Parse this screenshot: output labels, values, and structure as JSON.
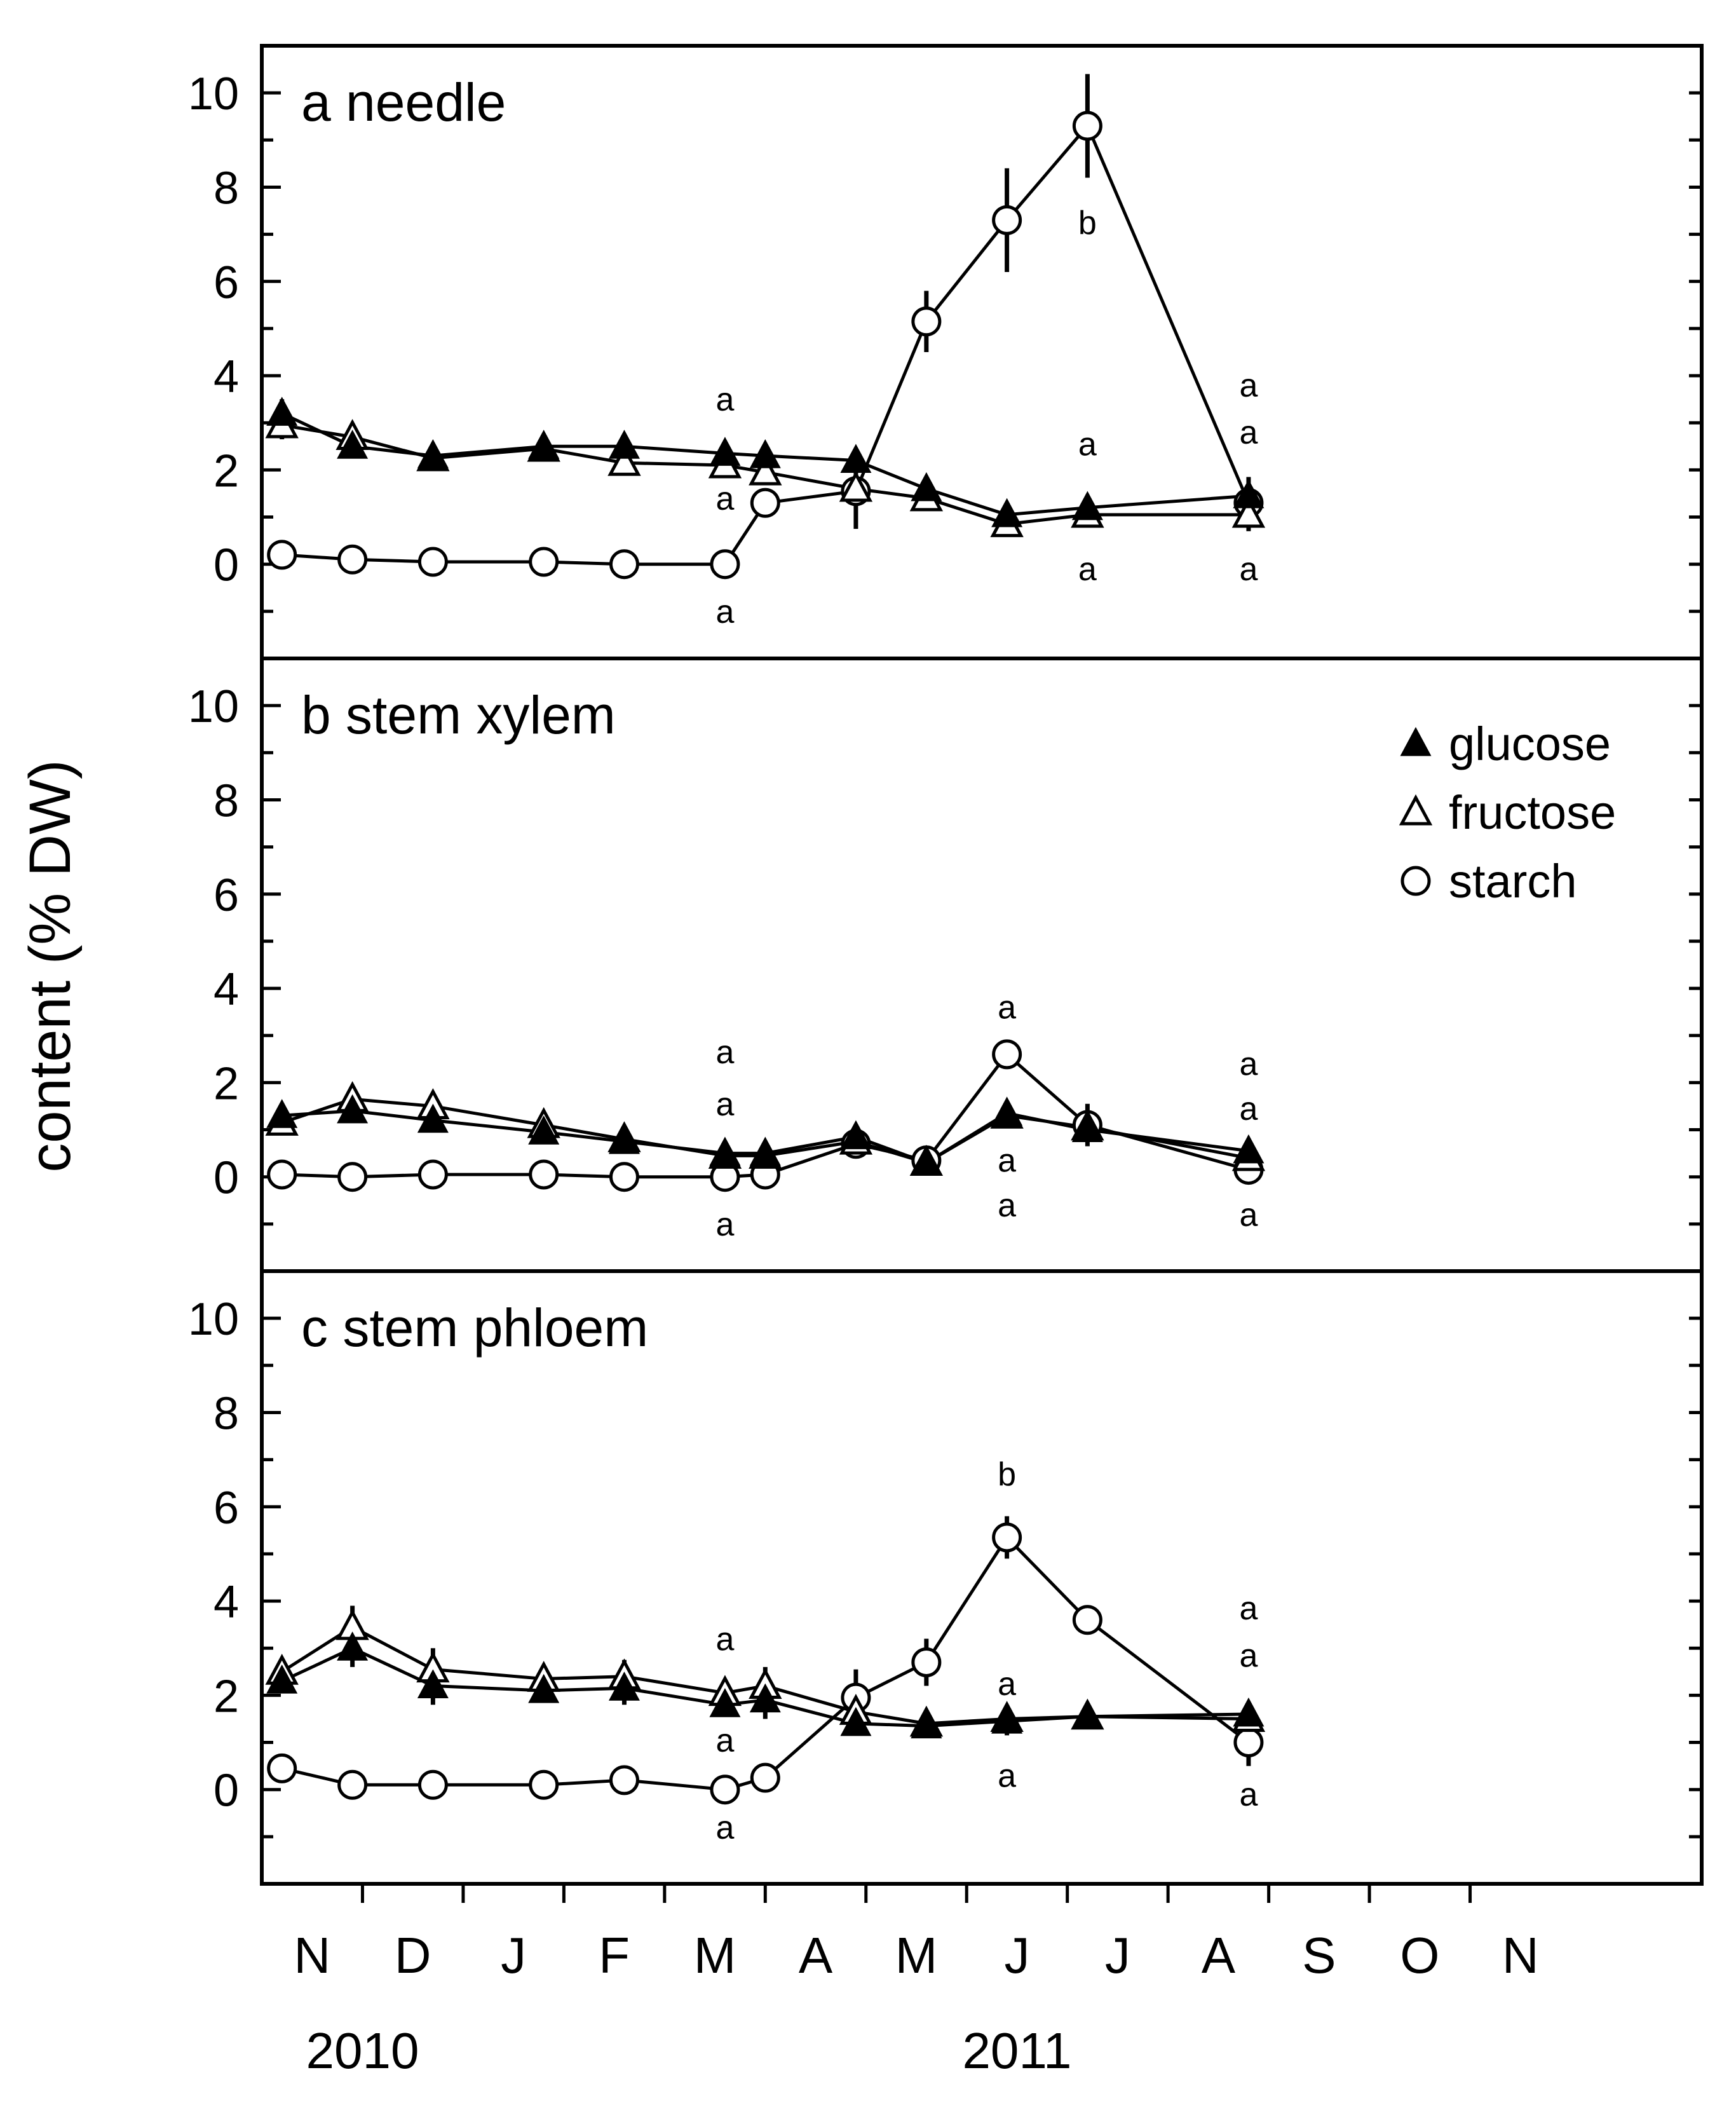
{
  "chart_data": {
    "type": "line",
    "ylabel": "content (% DW)",
    "ylim": [
      -2,
      11
    ],
    "yticks": [
      0,
      2,
      4,
      6,
      8,
      10
    ],
    "xlim": [
      9.5,
      23.8
    ],
    "month_ticks": [
      {
        "label": "N",
        "x": 10
      },
      {
        "label": "D",
        "x": 11
      },
      {
        "label": "J",
        "x": 12
      },
      {
        "label": "F",
        "x": 13
      },
      {
        "label": "M",
        "x": 14
      },
      {
        "label": "A",
        "x": 15
      },
      {
        "label": "M",
        "x": 16
      },
      {
        "label": "J",
        "x": 17
      },
      {
        "label": "J",
        "x": 18
      },
      {
        "label": "A",
        "x": 19
      },
      {
        "label": "S",
        "x": 20
      },
      {
        "label": "O",
        "x": 21
      },
      {
        "label": "N",
        "x": 22
      }
    ],
    "year_labels": [
      {
        "label": "2010",
        "x": 10.5
      },
      {
        "label": "2011",
        "x": 17
      }
    ],
    "legend": {
      "placement": "top-right of panel b",
      "entries": [
        {
          "name": "glucose",
          "marker": "filled-triangle"
        },
        {
          "name": "fructose",
          "marker": "open-triangle"
        },
        {
          "name": "starch",
          "marker": "open-circle"
        }
      ]
    },
    "panels": [
      {
        "title": "a needle",
        "series": [
          {
            "name": "glucose",
            "marker": "filled-triangle",
            "x": [
              9.7,
              10.4,
              11.2,
              12.3,
              13.1,
              14.1,
              14.5,
              15.4,
              16.1,
              16.9,
              17.7,
              19.3
            ],
            "y": [
              3.2,
              2.5,
              2.3,
              2.5,
              2.5,
              2.35,
              2.3,
              2.2,
              1.6,
              1.05,
              1.2,
              1.45
            ],
            "err": [
              0.3,
              0.2,
              0.15,
              0.2,
              0.2,
              0.15,
              0.15,
              0.15,
              0.15,
              0.15,
              0.15,
              0.4
            ]
          },
          {
            "name": "fructose",
            "marker": "open-triangle",
            "x": [
              9.7,
              10.4,
              11.2,
              12.3,
              13.1,
              14.1,
              14.5,
              15.4,
              16.1,
              16.9,
              17.7,
              19.3
            ],
            "y": [
              2.95,
              2.7,
              2.25,
              2.45,
              2.15,
              2.1,
              1.95,
              1.6,
              1.4,
              0.85,
              1.05,
              1.05
            ],
            "err": [
              0.3,
              0.2,
              0.15,
              0.2,
              0.2,
              0.15,
              0.15,
              0.15,
              0.15,
              0.15,
              0.15,
              0.35
            ]
          },
          {
            "name": "starch",
            "marker": "open-circle",
            "x": [
              9.7,
              10.4,
              11.2,
              12.3,
              13.1,
              14.1,
              14.5,
              15.4,
              16.1,
              16.9,
              17.7,
              19.3
            ],
            "y": [
              0.2,
              0.1,
              0.05,
              0.05,
              0.0,
              0.0,
              1.3,
              1.55,
              5.15,
              7.3,
              9.3,
              1.3
            ],
            "err": [
              0.1,
              0.05,
              0.05,
              0.05,
              0.05,
              0.05,
              0.15,
              0.8,
              0.65,
              1.1,
              1.1,
              0.4
            ]
          }
        ],
        "annotations": [
          {
            "text": "a",
            "x": 14.1,
            "y": 3.5
          },
          {
            "text": "a",
            "x": 14.1,
            "y": 1.4
          },
          {
            "text": "a",
            "x": 14.1,
            "y": -1.0
          },
          {
            "text": "b",
            "x": 17.7,
            "y": 7.25
          },
          {
            "text": "a",
            "x": 17.7,
            "y": 2.55
          },
          {
            "text": "a",
            "x": 17.7,
            "y": -0.1
          },
          {
            "text": "a",
            "x": 19.3,
            "y": 3.8
          },
          {
            "text": "a",
            "x": 19.3,
            "y": 2.8
          },
          {
            "text": "a",
            "x": 19.3,
            "y": -0.1
          }
        ]
      },
      {
        "title": "b stem xylem",
        "series": [
          {
            "name": "glucose",
            "marker": "filled-triangle",
            "x": [
              9.7,
              10.4,
              11.2,
              12.3,
              13.1,
              14.1,
              14.5,
              15.4,
              16.1,
              16.9,
              17.7,
              19.3
            ],
            "y": [
              1.3,
              1.4,
              1.2,
              0.95,
              0.75,
              0.5,
              0.5,
              0.85,
              0.3,
              1.35,
              1.0,
              0.55
            ],
            "err": [
              0.1,
              0.1,
              0.1,
              0.1,
              0.1,
              0.1,
              0.1,
              0.1,
              0.1,
              0.15,
              0.15,
              0.1
            ]
          },
          {
            "name": "fructose",
            "marker": "open-triangle",
            "x": [
              9.7,
              10.4,
              11.2,
              12.3,
              13.1,
              14.1,
              14.5,
              15.4,
              16.1,
              16.9,
              17.7,
              19.3
            ],
            "y": [
              1.15,
              1.65,
              1.5,
              1.1,
              0.8,
              0.45,
              0.45,
              0.75,
              0.3,
              1.3,
              1.05,
              0.4
            ],
            "err": [
              0.1,
              0.1,
              0.1,
              0.1,
              0.1,
              0.1,
              0.1,
              0.1,
              0.1,
              0.15,
              0.15,
              0.1
            ]
          },
          {
            "name": "starch",
            "marker": "open-circle",
            "x": [
              9.7,
              10.4,
              11.2,
              12.3,
              13.1,
              14.1,
              14.5,
              15.4,
              16.1,
              16.9,
              17.7,
              19.3
            ],
            "y": [
              0.05,
              0.0,
              0.05,
              0.05,
              0.0,
              0.0,
              0.05,
              0.7,
              0.35,
              2.6,
              1.1,
              0.15
            ],
            "err": [
              0.05,
              0.05,
              0.05,
              0.05,
              0.05,
              0.05,
              0.05,
              0.1,
              0.1,
              0.15,
              0.45,
              0.1
            ]
          }
        ],
        "annotations": [
          {
            "text": "a",
            "x": 14.1,
            "y": 2.65
          },
          {
            "text": "a",
            "x": 14.1,
            "y": 1.55
          },
          {
            "text": "a",
            "x": 14.1,
            "y": -1.0
          },
          {
            "text": "a",
            "x": 16.9,
            "y": 3.6
          },
          {
            "text": "a",
            "x": 16.9,
            "y": 0.35
          },
          {
            "text": "a",
            "x": 16.9,
            "y": -0.6
          },
          {
            "text": "a",
            "x": 19.3,
            "y": 2.4
          },
          {
            "text": "a",
            "x": 19.3,
            "y": 1.45
          },
          {
            "text": "a",
            "x": 19.3,
            "y": -0.8
          }
        ]
      },
      {
        "title": "c stem phloem",
        "series": [
          {
            "name": "glucose",
            "marker": "filled-triangle",
            "x": [
              9.7,
              10.4,
              11.2,
              12.3,
              13.1,
              14.1,
              14.5,
              15.4,
              16.1,
              16.9,
              17.7,
              19.3
            ],
            "y": [
              2.3,
              3.0,
              2.2,
              2.1,
              2.15,
              1.8,
              1.9,
              1.4,
              1.35,
              1.45,
              1.55,
              1.6
            ],
            "err": [
              0.15,
              0.4,
              0.4,
              0.2,
              0.35,
              0.2,
              0.4,
              0.2,
              0.15,
              0.3,
              0.15,
              0.2
            ]
          },
          {
            "name": "fructose",
            "marker": "open-triangle",
            "x": [
              9.7,
              10.4,
              11.2,
              12.3,
              13.1,
              14.1,
              14.5,
              15.4,
              16.1,
              16.9,
              17.7,
              19.3
            ],
            "y": [
              2.5,
              3.45,
              2.55,
              2.35,
              2.4,
              2.05,
              2.2,
              1.65,
              1.4,
              1.5,
              1.55,
              1.5
            ],
            "err": [
              0.15,
              0.45,
              0.45,
              0.2,
              0.35,
              0.2,
              0.4,
              0.2,
              0.15,
              0.3,
              0.15,
              0.2
            ]
          },
          {
            "name": "starch",
            "marker": "open-circle",
            "x": [
              9.7,
              10.4,
              11.2,
              12.3,
              13.1,
              14.1,
              14.5,
              15.4,
              16.1,
              16.9,
              17.7,
              19.3
            ],
            "y": [
              0.45,
              0.1,
              0.1,
              0.1,
              0.2,
              0.0,
              0.25,
              1.95,
              2.7,
              5.35,
              3.6,
              1.0
            ],
            "err": [
              0.1,
              0.1,
              0.1,
              0.1,
              0.1,
              0.05,
              0.1,
              0.6,
              0.5,
              0.45,
              0.15,
              0.5
            ]
          }
        ],
        "annotations": [
          {
            "text": "b",
            "x": 16.9,
            "y": 6.7
          },
          {
            "text": "a",
            "x": 16.9,
            "y": 2.25
          },
          {
            "text": "a",
            "x": 16.9,
            "y": 0.3
          },
          {
            "text": "a",
            "x": 14.1,
            "y": 3.2
          },
          {
            "text": "a",
            "x": 14.1,
            "y": 1.05
          },
          {
            "text": "a",
            "x": 14.1,
            "y": -0.8
          },
          {
            "text": "a",
            "x": 19.3,
            "y": 3.85
          },
          {
            "text": "a",
            "x": 19.3,
            "y": 2.85
          },
          {
            "text": "a",
            "x": 19.3,
            "y": -0.1
          }
        ]
      }
    ]
  }
}
